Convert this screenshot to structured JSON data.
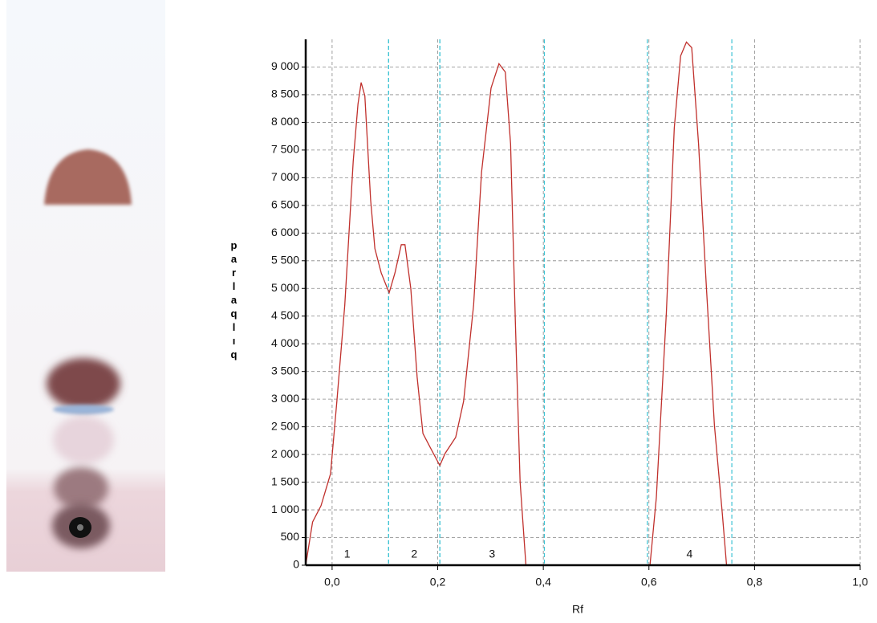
{
  "chart_data": {
    "type": "line",
    "xlabel": "Rf",
    "ylabel": "parlaqlıq",
    "xlim": [
      -0.05,
      1.0
    ],
    "ylim": [
      0,
      9500
    ],
    "xticks": [
      {
        "value": 0,
        "label": "0,0"
      },
      {
        "value": 0.2,
        "label": "0,2"
      },
      {
        "value": 0.4,
        "label": "0,4"
      },
      {
        "value": 0.6,
        "label": "0,6"
      },
      {
        "value": 0.8,
        "label": "0,8"
      },
      {
        "value": 1.0,
        "label": "1,0"
      }
    ],
    "yticks": [
      0,
      500,
      {
        "value": 1000,
        "label": "1 000"
      },
      {
        "value": 1500,
        "label": "1 500"
      },
      {
        "value": 2000,
        "label": "2 000"
      },
      {
        "value": 2500,
        "label": "2 500"
      },
      {
        "value": 3000,
        "label": "3 000"
      },
      {
        "value": 3500,
        "label": "3 500"
      },
      {
        "value": 4000,
        "label": "4 000"
      },
      {
        "value": 4500,
        "label": "4 500"
      },
      {
        "value": 5000,
        "label": "5 000"
      },
      {
        "value": 5500,
        "label": "5 500"
      },
      {
        "value": 6000,
        "label": "6 000"
      },
      {
        "value": 6500,
        "label": "6 500"
      },
      {
        "value": 7000,
        "label": "7 000"
      },
      {
        "value": 7500,
        "label": "7 500"
      },
      {
        "value": 8000,
        "label": "8 000"
      },
      {
        "value": 8500,
        "label": "8 500"
      },
      {
        "value": 9000,
        "label": "9 000"
      }
    ],
    "grid": true,
    "grid_color": "#888888",
    "boundary_color": "#3fc4d4",
    "x": [
      -0.05,
      -0.037,
      -0.021,
      -0.003,
      0.009,
      0.024,
      0.04,
      0.049,
      0.055,
      0.062,
      0.073,
      0.081,
      0.093,
      0.108,
      0.119,
      0.131,
      0.138,
      0.149,
      0.161,
      0.172,
      0.184,
      0.204,
      0.214,
      0.234,
      0.249,
      0.268,
      0.283,
      0.301,
      0.316,
      0.328,
      0.338,
      0.347,
      0.356,
      0.367,
      0.602,
      0.614,
      0.633,
      0.648,
      0.66,
      0.671,
      0.681,
      0.694,
      0.709,
      0.724,
      0.739,
      0.747,
      1.0
    ],
    "color": "#c0302c",
    "values": [
      0,
      780,
      1075,
      1650,
      2960,
      4700,
      7300,
      8330,
      8720,
      8480,
      6590,
      5720,
      5280,
      4920,
      5280,
      5790,
      5790,
      5000,
      3400,
      2380,
      2160,
      1800,
      2020,
      2310,
      2960,
      4700,
      7100,
      8620,
      9060,
      8910,
      7610,
      4410,
      1510,
      0,
      0,
      1220,
      4560,
      7900,
      9200,
      9450,
      9350,
      7610,
      4990,
      2530,
      930,
      0,
      0
    ],
    "peaks": [
      {
        "label": "1",
        "range": [
          -0.05,
          0.107
        ]
      },
      {
        "label": "2",
        "range": [
          0.107,
          0.204
        ]
      },
      {
        "label": "3",
        "range": [
          0.204,
          0.402
        ]
      },
      {
        "label": "4",
        "range": [
          0.597,
          0.757
        ]
      }
    ]
  }
}
